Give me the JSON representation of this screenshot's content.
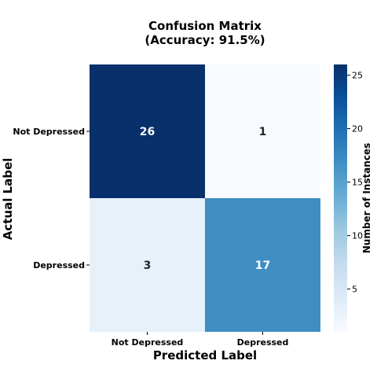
{
  "chart_data": {
    "type": "heatmap",
    "title": "Confusion Matrix",
    "subtitle": "(Accuracy: 91.5%)",
    "xlabel": "Predicted Label",
    "ylabel": "Actual Label",
    "x_categories": [
      "Not Depressed",
      "Depressed"
    ],
    "y_categories": [
      "Not Depressed",
      "Depressed"
    ],
    "values": [
      [
        26,
        1
      ],
      [
        3,
        17
      ]
    ],
    "colorbar": {
      "label": "Number of Instances",
      "range": [
        1,
        26
      ],
      "ticks": [
        5,
        10,
        15,
        20,
        25
      ],
      "colormap": "Blues"
    }
  }
}
